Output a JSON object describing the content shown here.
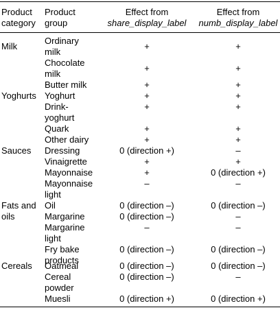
{
  "headers": {
    "category": [
      "Product",
      "category"
    ],
    "group": [
      "Product",
      "group"
    ],
    "share": [
      "Effect from",
      "share_display_label"
    ],
    "numb": [
      "Effect from",
      "numb_display_label"
    ]
  },
  "rows": [
    {
      "category": "Milk",
      "group": [
        "Ordinary",
        "milk"
      ],
      "share": "+",
      "numb": "+"
    },
    {
      "category": "",
      "group": [
        "Chocolate",
        "milk"
      ],
      "share": "+",
      "numb": "+"
    },
    {
      "category": "",
      "group": [
        "Butter milk"
      ],
      "share": "+",
      "numb": "+"
    },
    {
      "category": "Yoghurts",
      "group": [
        "Yoghurt"
      ],
      "share": "+",
      "numb": "+"
    },
    {
      "category": "",
      "group": [
        "Drink-",
        "yoghurt"
      ],
      "share": "+",
      "numb": "+"
    },
    {
      "category": "",
      "group": [
        "Quark"
      ],
      "share": "+",
      "numb": "+"
    },
    {
      "category": "",
      "group": [
        "Other dairy"
      ],
      "share": "+",
      "numb": "+"
    },
    {
      "category": "Sauces",
      "group": [
        "Dressing"
      ],
      "share": "0 (direction +)",
      "numb": "–"
    },
    {
      "category": "",
      "group": [
        "Vinaigrette"
      ],
      "share": "+",
      "numb": "+"
    },
    {
      "category": "",
      "group": [
        "Mayonnaise"
      ],
      "share": "+",
      "numb": "0 (direction +)"
    },
    {
      "category": "",
      "group": [
        "Mayonnaise",
        "light"
      ],
      "share": "–",
      "numb": "–"
    },
    {
      "category": [
        "Fats and",
        "oils"
      ],
      "group": [
        "Oil"
      ],
      "share": "0 (direction –)",
      "numb": "0 (direction –)"
    },
    {
      "category": "",
      "group": [
        "Margarine"
      ],
      "share": "0 (direction –)",
      "numb": "–"
    },
    {
      "category": "",
      "group": [
        "Margarine",
        "light"
      ],
      "share": "–",
      "numb": "–"
    },
    {
      "category": "",
      "group": [
        "Fry bake",
        "products"
      ],
      "share": "0 (direction –)",
      "numb": "0 (direction –)"
    },
    {
      "category": "Cereals",
      "group": [
        "Oatmeal"
      ],
      "share": "0 (direction –)",
      "numb": "0 (direction –)"
    },
    {
      "category": "",
      "group": [
        "Cereal",
        "powder"
      ],
      "share": "0 (direction –)",
      "numb": "–"
    },
    {
      "category": "",
      "group": [
        "Muesli"
      ],
      "share": "0 (direction +)",
      "numb": "0 (direction +)"
    }
  ]
}
